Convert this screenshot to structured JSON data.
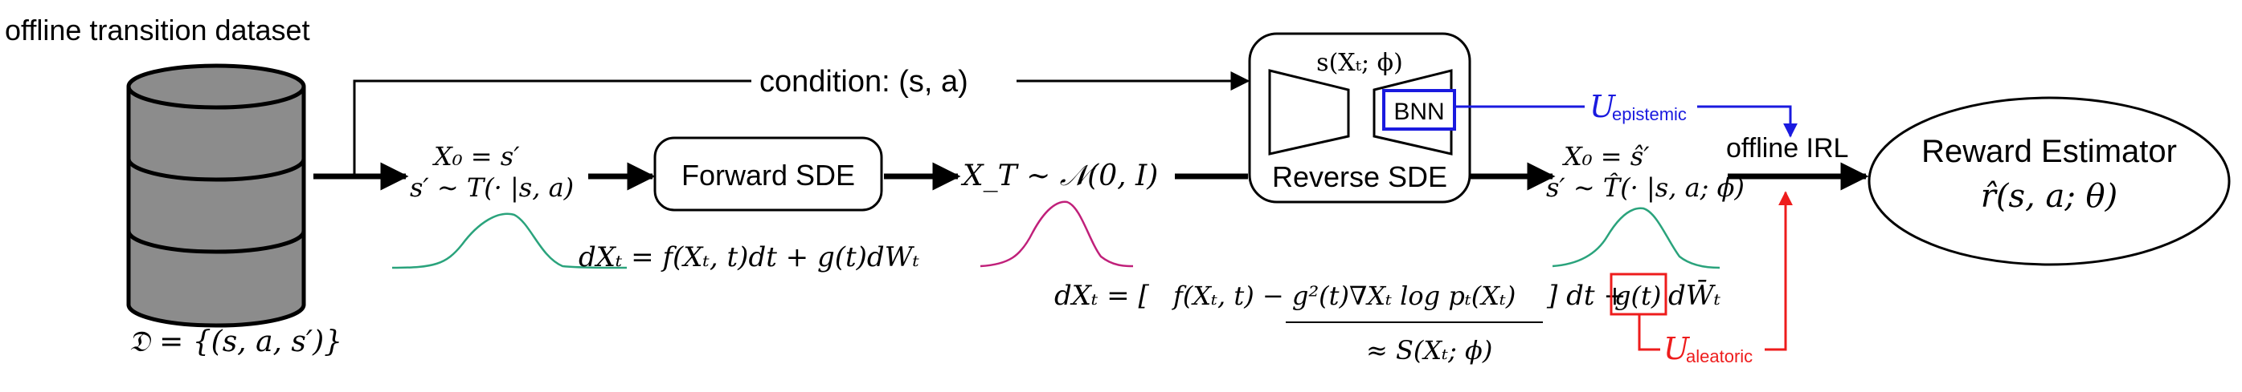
{
  "title": "offline transition dataset",
  "condition_label": "condition: (s, a)",
  "dataset_formula": "𝔇 = {(s, a, s′)}",
  "init_state": {
    "line1": "X₀ = s′",
    "line2": "s′ ∼ T(· |s, a)"
  },
  "forward_sde": {
    "label": "Forward SDE",
    "equation": "dXₜ = f(Xₜ, t)dt + g(t)dWₜ"
  },
  "terminal_state": "X_T ∼ 𝒩(0, I)",
  "reverse_sde": {
    "score_label": "s(Xₜ; ϕ)",
    "bnn_label": "BNN",
    "label": "Reverse SDE",
    "equation_open": "dXₜ = [",
    "equation_inner": "f(Xₜ, t) − g²(t)∇Xₜ log pₜ(Xₜ)",
    "equation_close": "] dt + ",
    "equation_g": "g(t)",
    "equation_dw": "dW̄ₜ",
    "approx_score": "≈ S(Xₜ; ϕ)"
  },
  "generated_state": {
    "line1": "X₀ = ŝ′",
    "line2": "s′ ∼ T̂(· |s, a; ϕ)"
  },
  "uncertainty": {
    "epistemic_symbol": "U",
    "epistemic_sub": "epistemic",
    "aleatoric_symbol": "U",
    "aleatoric_sub": "aleatoric"
  },
  "offline_irl_label": "offline IRL",
  "reward_estimator": {
    "title": "Reward Estimator",
    "formula": "r̂(s, a; θ)"
  },
  "colors": {
    "line": "#000000",
    "epistemic": "#1a1adf",
    "aleatoric": "#ee1c1c",
    "gaussian_green": "#2aa37c",
    "gaussian_pink": "#c0207a",
    "database_fill": "#8c8c8c"
  },
  "icons": {
    "database": "database-cylinder-icon",
    "encoder": "encoder-trapezoid-icon",
    "decoder": "decoder-trapezoid-icon"
  }
}
